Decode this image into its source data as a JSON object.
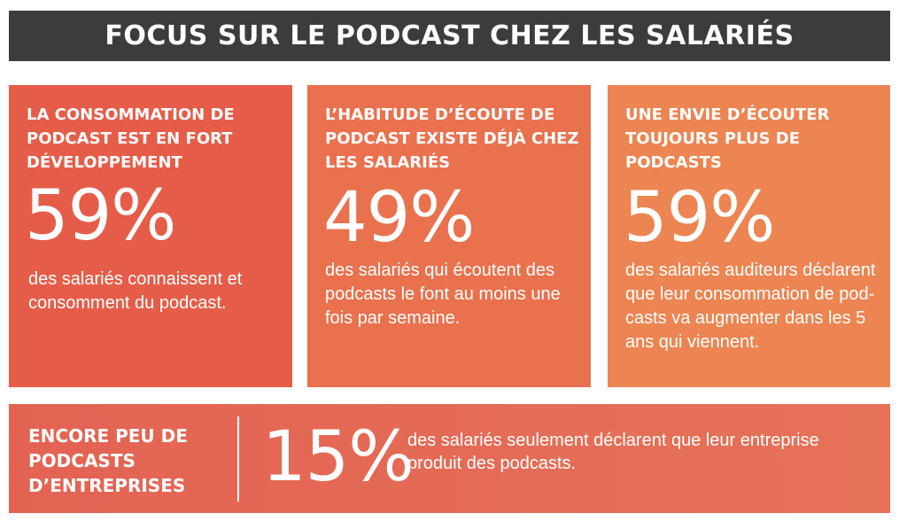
{
  "header": {
    "title": "FOCUS SUR LE PODCAST CHEZ LES SALARIÉS"
  },
  "cards": [
    {
      "title": "LA CONSOMMATION DE PODCAST EST EN FORT DÉVELOPPEMENT",
      "value": "59%",
      "description": "des salariés connaissent et consomment du podcast."
    },
    {
      "title": "L’HABITUDE D’ÉCOUTE DE PODCAST EXISTE DÉJÀ CHEZ LES SALARIÉS",
      "value": "49%",
      "description": "des salariés qui écoutent des podcasts le font au moins une fois par semaine."
    },
    {
      "title": "UNE ENVIE D’ÉCOUTER TOUJOURS PLUS DE PODCASTS",
      "value": "59%",
      "description": "des salariés auditeurs déclarent que leur consommation de pod-casts va augmenter dans les 5 ans qui viennent."
    }
  ],
  "bottom": {
    "title": "ENCORE PEU DE PODCASTS D’ENTREPRISES",
    "value": "15%",
    "description": "des salariés seulement déclarent que leur entreprise produit des podcasts."
  },
  "colors": {
    "header_bg": "#3e3b3b",
    "card1_bg": "#e55d49",
    "card2_bg": "#e9714e",
    "card3_bg": "#ec8552",
    "bottom_bg": "#e36b54"
  }
}
